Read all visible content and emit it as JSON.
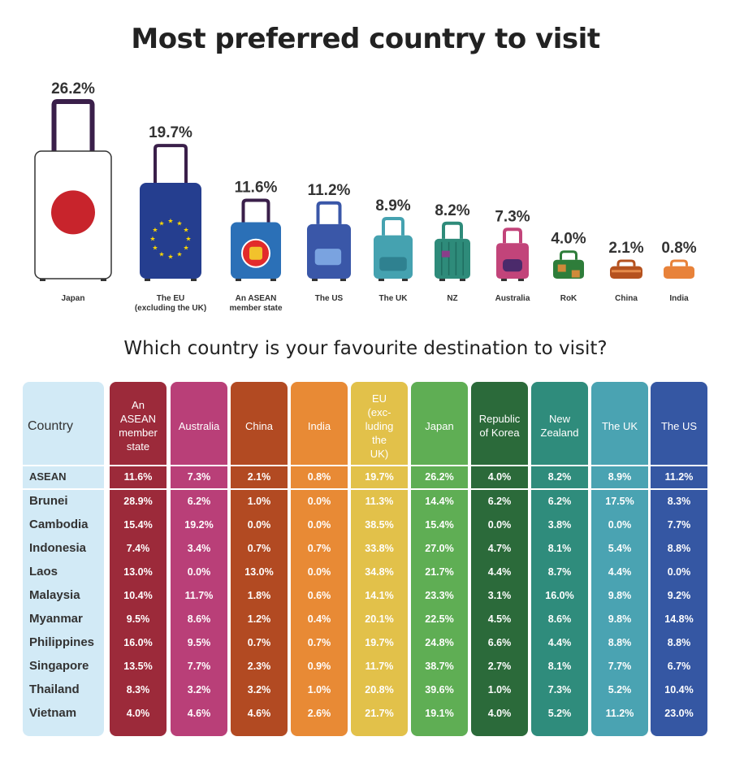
{
  "title": "Most preferred country to visit",
  "subtitle": "Which country is your favourite destination to visit?",
  "colors": {
    "first_col": "#d2eaf6",
    "header_sep": "#ffffff",
    "suitcase_navy": "#3a1f4a"
  },
  "chart_data": [
    {
      "type": "bar",
      "title": "Most preferred country to visit",
      "categories": [
        "Japan",
        "The EU (excluding the UK)",
        "An ASEAN member state",
        "The US",
        "The UK",
        "NZ",
        "Australia",
        "RoK",
        "China",
        "India"
      ],
      "values": [
        26.2,
        19.7,
        11.6,
        11.2,
        8.9,
        8.2,
        7.3,
        4.0,
        2.1,
        0.8
      ],
      "value_labels": [
        "26.2%",
        "19.7%",
        "11.6%",
        "11.2%",
        "8.9%",
        "8.2%",
        "7.3%",
        "4.0%",
        "2.1%",
        "0.8%"
      ],
      "category_labels": [
        [
          "Japan"
        ],
        [
          "The EU",
          "(excluding the UK)"
        ],
        [
          "An ASEAN",
          "member state"
        ],
        [
          "The US"
        ],
        [
          "The UK"
        ],
        [
          "NZ"
        ],
        [
          "Australia"
        ],
        [
          "RoK"
        ],
        [
          "China"
        ],
        [
          "India"
        ]
      ],
      "bar_colors": [
        "#ffffff",
        "#253e8f",
        "#2b70b7",
        "#3a57a8",
        "#45a2b0",
        "#2e8b7a",
        "#c2447a",
        "#2e7d3a",
        "#b5521f",
        "#e8823a"
      ]
    },
    {
      "type": "table",
      "title": "Which country is your favourite destination to visit?",
      "header_first": "Country",
      "columns": [
        {
          "label": "An ASEAN member state",
          "lines": [
            "An",
            "ASEAN",
            "member",
            "state"
          ],
          "color": "#9c2a3a"
        },
        {
          "label": "Australia",
          "lines": [
            "Australia"
          ],
          "color": "#b93f78"
        },
        {
          "label": "China",
          "lines": [
            "China"
          ],
          "color": "#b24a22"
        },
        {
          "label": "India",
          "lines": [
            "India"
          ],
          "color": "#e88a35"
        },
        {
          "label": "EU (excluding the UK)",
          "lines": [
            "EU",
            "(exc-",
            "luding",
            "the",
            "UK)"
          ],
          "color": "#e2c14a"
        },
        {
          "label": "Japan",
          "lines": [
            "Japan"
          ],
          "color": "#5fae54"
        },
        {
          "label": "Republic of Korea",
          "lines": [
            "Republic",
            "of Korea"
          ],
          "color": "#2b6a3a"
        },
        {
          "label": "New Zealand",
          "lines": [
            "New",
            "Zealand"
          ],
          "color": "#2f8c7c"
        },
        {
          "label": "The UK",
          "lines": [
            "The UK"
          ],
          "color": "#4aa3b2"
        },
        {
          "label": "The US",
          "lines": [
            "The US"
          ],
          "color": "#3557a3"
        }
      ],
      "rows": [
        {
          "label": "ASEAN",
          "values": [
            "11.6%",
            "7.3%",
            "2.1%",
            "0.8%",
            "19.7%",
            "26.2%",
            "4.0%",
            "8.2%",
            "8.9%",
            "11.2%"
          ]
        },
        {
          "label": "Brunei",
          "values": [
            "28.9%",
            "6.2%",
            "1.0%",
            "0.0%",
            "11.3%",
            "14.4%",
            "6.2%",
            "6.2%",
            "17.5%",
            "8.3%"
          ]
        },
        {
          "label": "Cambodia",
          "values": [
            "15.4%",
            "19.2%",
            "0.0%",
            "0.0%",
            "38.5%",
            "15.4%",
            "0.0%",
            "3.8%",
            "0.0%",
            "7.7%"
          ]
        },
        {
          "label": "Indonesia",
          "values": [
            "7.4%",
            "3.4%",
            "0.7%",
            "0.7%",
            "33.8%",
            "27.0%",
            "4.7%",
            "8.1%",
            "5.4%",
            "8.8%"
          ]
        },
        {
          "label": "Laos",
          "values": [
            "13.0%",
            "0.0%",
            "13.0%",
            "0.0%",
            "34.8%",
            "21.7%",
            "4.4%",
            "8.7%",
            "4.4%",
            "0.0%"
          ]
        },
        {
          "label": "Malaysia",
          "values": [
            "10.4%",
            "11.7%",
            "1.8%",
            "0.6%",
            "14.1%",
            "23.3%",
            "3.1%",
            "16.0%",
            "9.8%",
            "9.2%"
          ]
        },
        {
          "label": "Myanmar",
          "values": [
            "9.5%",
            "8.6%",
            "1.2%",
            "0.4%",
            "20.1%",
            "22.5%",
            "4.5%",
            "8.6%",
            "9.8%",
            "14.8%"
          ]
        },
        {
          "label": "Philippines",
          "values": [
            "16.0%",
            "9.5%",
            "0.7%",
            "0.7%",
            "19.7%",
            "24.8%",
            "6.6%",
            "4.4%",
            "8.8%",
            "8.8%"
          ]
        },
        {
          "label": "Singapore",
          "values": [
            "13.5%",
            "7.7%",
            "2.3%",
            "0.9%",
            "11.7%",
            "38.7%",
            "2.7%",
            "8.1%",
            "7.7%",
            "6.7%"
          ]
        },
        {
          "label": "Thailand",
          "values": [
            "8.3%",
            "3.2%",
            "3.2%",
            "1.0%",
            "20.8%",
            "39.6%",
            "1.0%",
            "7.3%",
            "5.2%",
            "10.4%"
          ]
        },
        {
          "label": "Vietnam",
          "values": [
            "4.0%",
            "4.6%",
            "4.6%",
            "2.6%",
            "21.7%",
            "19.1%",
            "4.0%",
            "5.2%",
            "11.2%",
            "23.0%"
          ]
        }
      ]
    }
  ]
}
